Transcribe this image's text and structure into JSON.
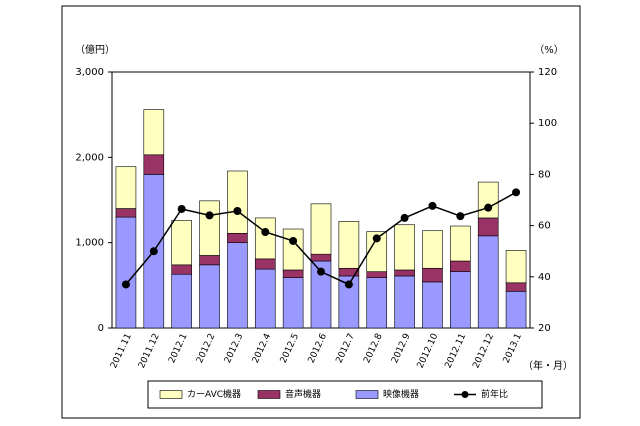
{
  "chart_data": {
    "type": "bar",
    "y_unit": "（億円）",
    "y2_unit": "（%）",
    "x_unit": "（年・月）",
    "categories": [
      "2011.11",
      "2011.12",
      "2012.1",
      "2012.2",
      "2012.3",
      "2012.4",
      "2012.5",
      "2012.6",
      "2012.7",
      "2012.8",
      "2012.9",
      "2012.10",
      "2012.11",
      "2012.12",
      "2013.1"
    ],
    "series": [
      {
        "name": "映像機器",
        "color": "#9999ff",
        "values": [
          1300,
          1800,
          630,
          740,
          1000,
          690,
          590,
          785,
          610,
          590,
          610,
          540,
          660,
          1080,
          430
        ]
      },
      {
        "name": "音声機器",
        "color": "#993366",
        "values": [
          100,
          230,
          110,
          110,
          110,
          120,
          90,
          80,
          90,
          70,
          70,
          160,
          125,
          210,
          100
        ]
      },
      {
        "name": "カーAVC機器",
        "color": "#ffffc0",
        "values": [
          490,
          530,
          520,
          640,
          730,
          480,
          480,
          590,
          550,
          470,
          530,
          440,
          410,
          420,
          380
        ]
      },
      {
        "name": "前年比",
        "color": "#000000",
        "type": "line",
        "axis": "y2",
        "values": [
          37,
          50,
          66.5,
          64,
          65.7,
          57.5,
          54,
          42,
          37,
          55,
          63,
          67.7,
          63.7,
          67,
          73
        ]
      }
    ],
    "ylim": [
      0,
      3000
    ],
    "yticks": [
      0,
      {
        "value": 1000,
        "label": "1,000"
      },
      {
        "value": 2000,
        "label": "2,000"
      },
      {
        "value": 3000,
        "label": "3,000"
      }
    ],
    "y2lim": [
      20,
      120
    ],
    "y2ticks": [
      20,
      40,
      60,
      80,
      100,
      120
    ],
    "stacked": true,
    "legend": "bottom"
  }
}
